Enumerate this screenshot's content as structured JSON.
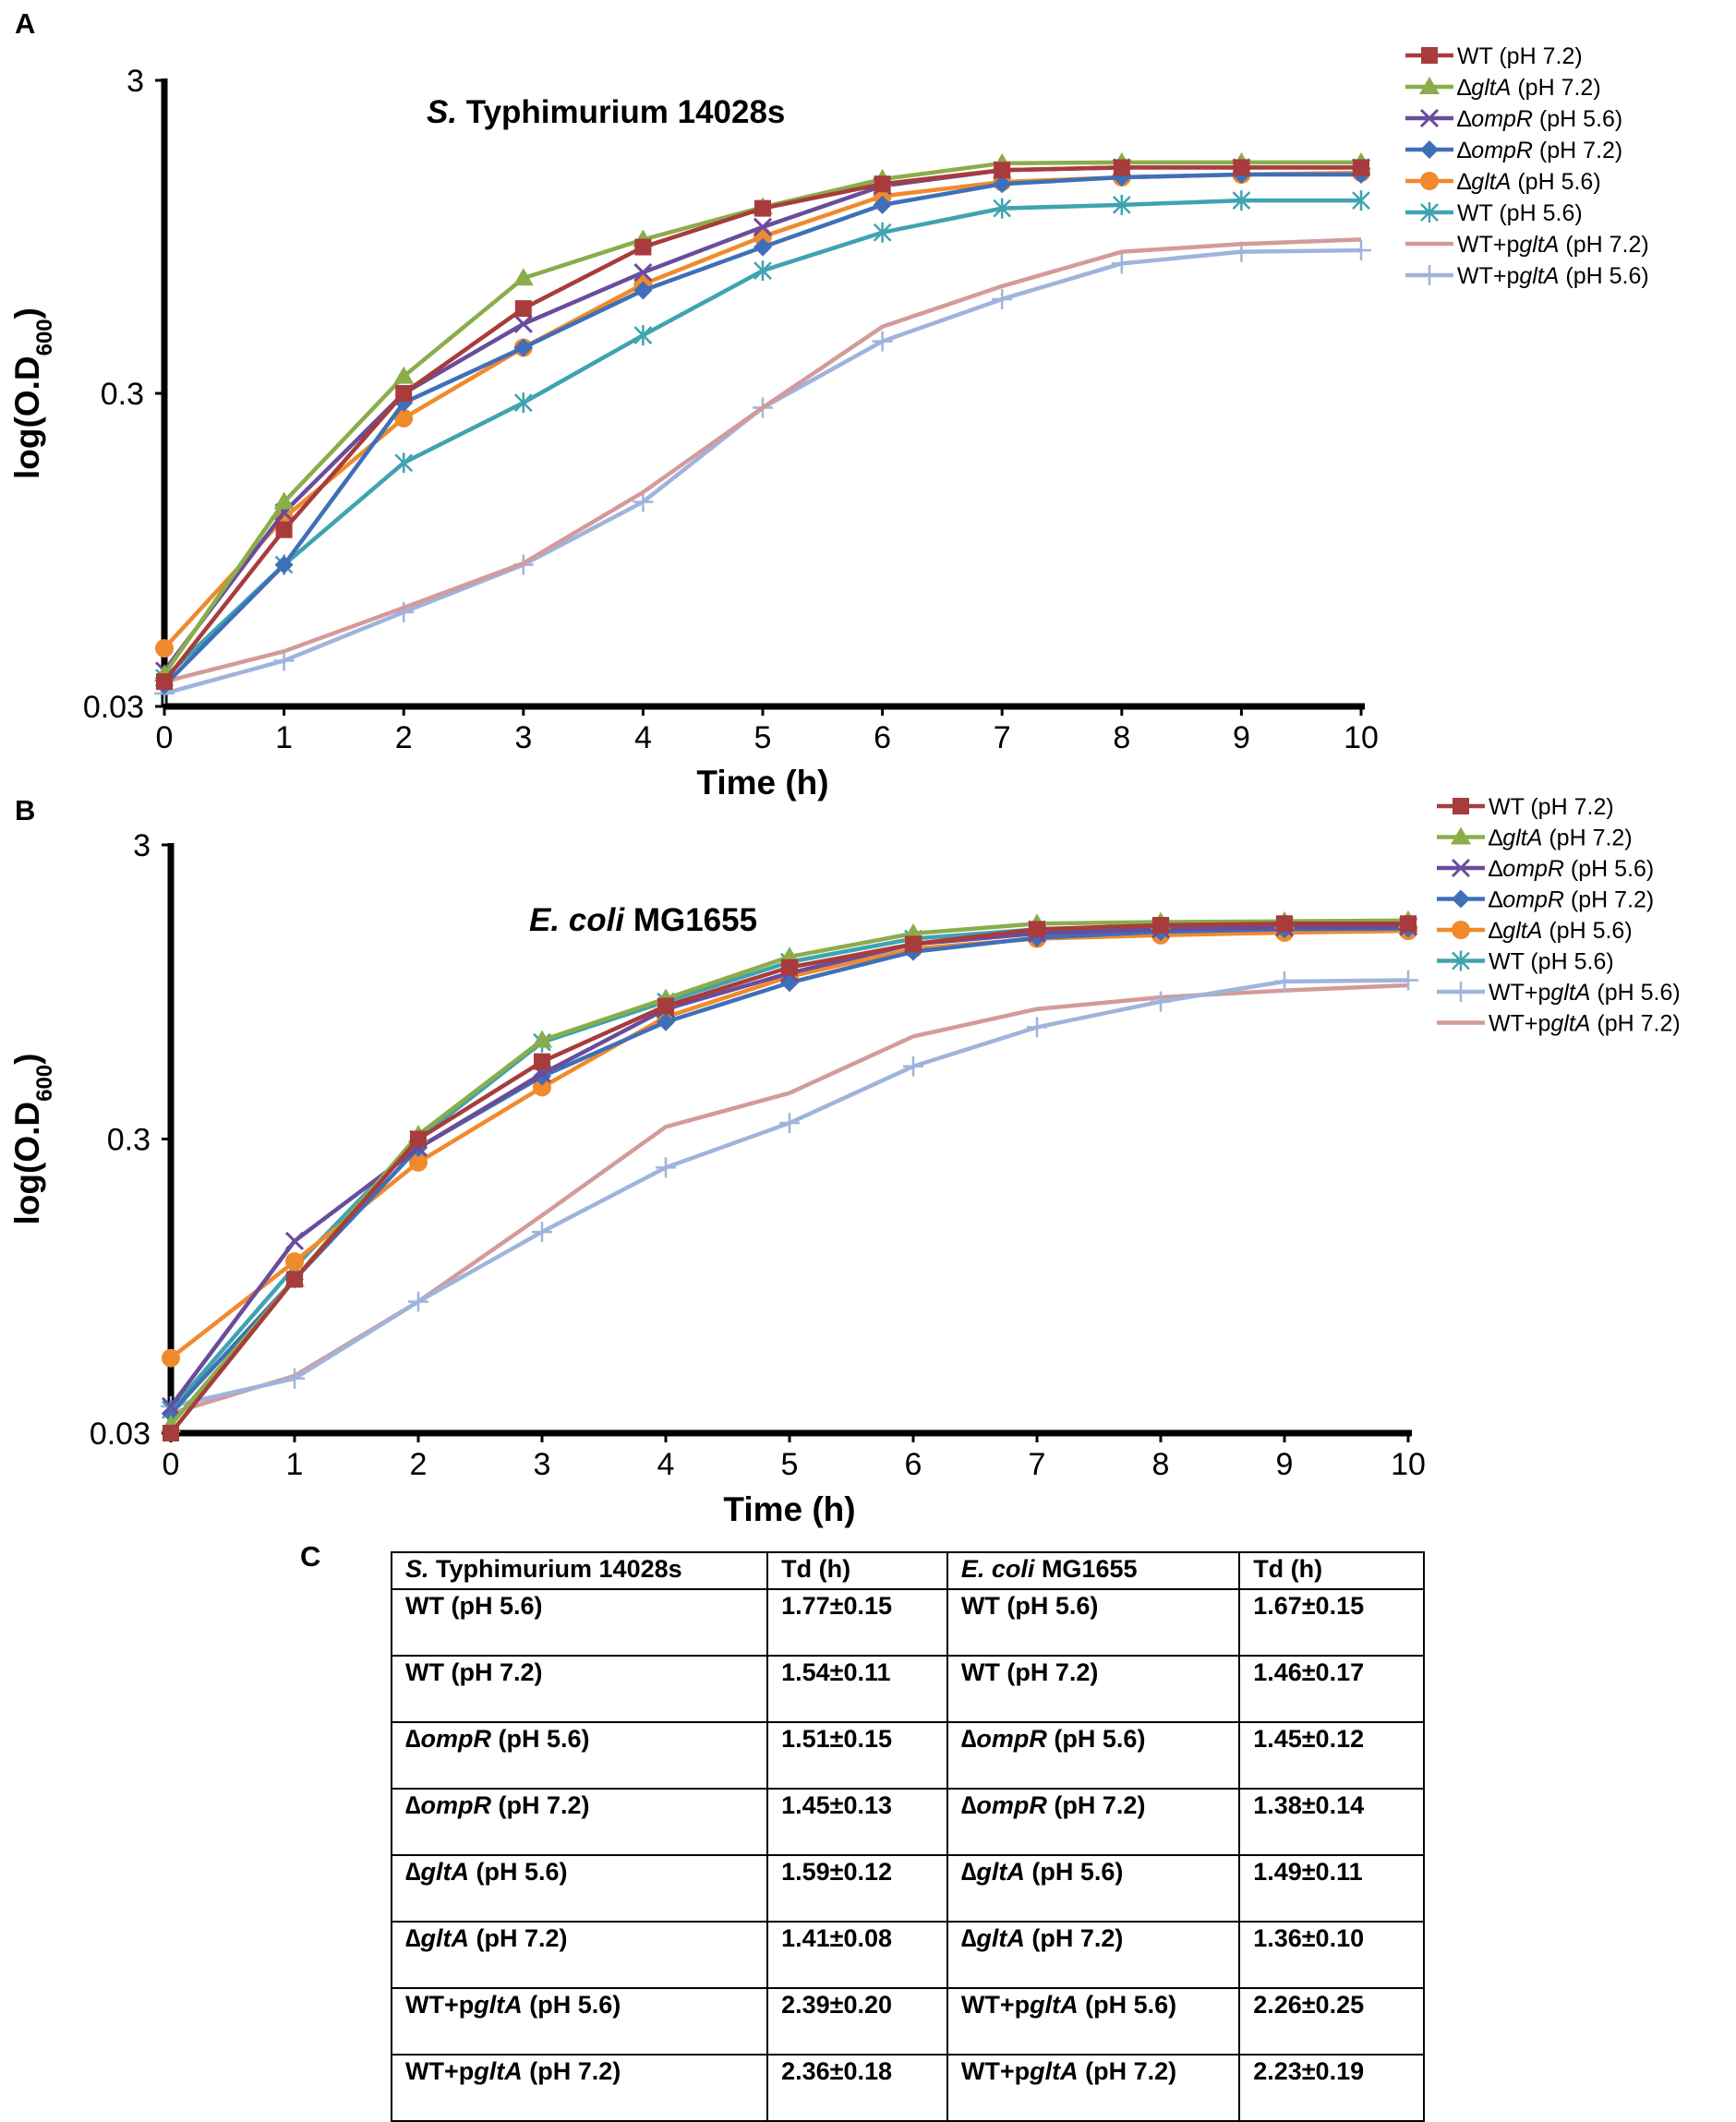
{
  "panels": [
    "A",
    "B",
    "C"
  ],
  "chart_data": [
    {
      "type": "line",
      "panel": "A",
      "title": "S. Typhimurium 14028s",
      "xlabel": "Time (h)",
      "ylabel": "log(O.D600)",
      "yscale": "log",
      "xlim": [
        0,
        10
      ],
      "ylim": [
        0.03,
        3
      ],
      "xticks": [
        "0",
        "1",
        "2",
        "3",
        "4",
        "5",
        "6",
        "7",
        "8",
        "9",
        "10"
      ],
      "yticks": [
        "0.03",
        "0.3",
        "3"
      ],
      "x": [
        0,
        1,
        2,
        3,
        4,
        5,
        6,
        7,
        8,
        9,
        10
      ],
      "legend_position": "top-right",
      "series": [
        {
          "name": "WT (pH 7.2)",
          "color": "#a83c3c",
          "marker": "square",
          "values": [
            0.036,
            0.11,
            0.3,
            0.56,
            0.88,
            1.17,
            1.4,
            1.55,
            1.58,
            1.58,
            1.58
          ]
        },
        {
          "name": "∆gltA (pH 7.2)",
          "color": "#8aad4a",
          "marker": "triangle",
          "values": [
            0.038,
            0.135,
            0.34,
            0.7,
            0.93,
            1.18,
            1.45,
            1.63,
            1.64,
            1.64,
            1.64
          ]
        },
        {
          "name": "∆ompR (pH 5.6)",
          "color": "#6a4c9c",
          "marker": "x",
          "values": [
            0.039,
            0.125,
            0.3,
            0.5,
            0.73,
            1.02,
            1.38,
            1.55,
            1.58,
            1.58,
            1.58
          ]
        },
        {
          "name": "∆ompR (pH 7.2)",
          "color": "#3f6fb8",
          "marker": "diamond",
          "values": [
            0.035,
            0.085,
            0.28,
            0.42,
            0.64,
            0.88,
            1.2,
            1.4,
            1.47,
            1.5,
            1.5
          ]
        },
        {
          "name": "∆gltA (pH 5.6)",
          "color": "#f08a2c",
          "marker": "circle",
          "values": [
            0.046,
            0.12,
            0.25,
            0.42,
            0.67,
            0.95,
            1.28,
            1.42,
            1.47,
            1.5,
            1.52
          ]
        },
        {
          "name": "WT (pH 5.6)",
          "color": "#3fa3b0",
          "marker": "asterisk",
          "values": [
            0.037,
            0.085,
            0.18,
            0.28,
            0.46,
            0.74,
            0.98,
            1.17,
            1.2,
            1.24,
            1.24
          ]
        },
        {
          "name": "WT+pgltA (pH 7.2)",
          "color": "#d49a9a",
          "marker": "none",
          "values": [
            0.036,
            0.045,
            0.062,
            0.086,
            0.145,
            0.27,
            0.49,
            0.66,
            0.85,
            0.9,
            0.93
          ]
        },
        {
          "name": "WT+pgltA (pH 5.6)",
          "color": "#9fb4dc",
          "marker": "plus",
          "values": [
            0.033,
            0.042,
            0.06,
            0.085,
            0.135,
            0.27,
            0.44,
            0.6,
            0.78,
            0.85,
            0.86
          ]
        }
      ]
    },
    {
      "type": "line",
      "panel": "B",
      "title": "E. coli MG1655",
      "xlabel": "Time (h)",
      "ylabel": "log(O.D600)",
      "yscale": "log",
      "xlim": [
        0,
        10
      ],
      "ylim": [
        0.03,
        3
      ],
      "xticks": [
        "0",
        "1",
        "2",
        "3",
        "4",
        "5",
        "6",
        "7",
        "8",
        "9",
        "10"
      ],
      "yticks": [
        "0.03",
        "0.3",
        "3"
      ],
      "x": [
        0,
        1,
        2,
        3,
        4,
        5,
        6,
        7,
        8,
        9,
        10
      ],
      "legend_position": "top-right",
      "series": [
        {
          "name": "WT (pH 7.2)",
          "color": "#a83c3c",
          "marker": "square",
          "values": [
            0.03,
            0.1,
            0.3,
            0.55,
            0.85,
            1.15,
            1.38,
            1.55,
            1.6,
            1.62,
            1.62
          ]
        },
        {
          "name": "∆gltA (pH 7.2)",
          "color": "#8aad4a",
          "marker": "triangle",
          "values": [
            0.032,
            0.1,
            0.31,
            0.65,
            0.9,
            1.25,
            1.5,
            1.62,
            1.64,
            1.65,
            1.66
          ]
        },
        {
          "name": "∆ompR (pH 5.6)",
          "color": "#6a4c9c",
          "marker": "x",
          "values": [
            0.037,
            0.135,
            0.28,
            0.5,
            0.83,
            1.1,
            1.38,
            1.5,
            1.55,
            1.57,
            1.58
          ]
        },
        {
          "name": "∆ompR (pH 7.2)",
          "color": "#3f6fb8",
          "marker": "diamond",
          "values": [
            0.035,
            0.1,
            0.28,
            0.49,
            0.75,
            1.02,
            1.3,
            1.45,
            1.52,
            1.55,
            1.56
          ]
        },
        {
          "name": "∆gltA (pH 5.6)",
          "color": "#f08a2c",
          "marker": "circle",
          "values": [
            0.054,
            0.115,
            0.25,
            0.45,
            0.78,
            1.07,
            1.33,
            1.44,
            1.48,
            1.51,
            1.53
          ]
        },
        {
          "name": "WT (pH 5.6)",
          "color": "#3fa3b0",
          "marker": "asterisk",
          "values": [
            0.036,
            0.11,
            0.3,
            0.64,
            0.88,
            1.2,
            1.44,
            1.55,
            1.58,
            1.6,
            1.6
          ]
        },
        {
          "name": "WT+pgltA (pH 5.6)",
          "color": "#9fb4dc",
          "marker": "plus",
          "values": [
            0.037,
            0.046,
            0.084,
            0.145,
            0.24,
            0.34,
            0.53,
            0.72,
            0.88,
            1.03,
            1.04
          ]
        },
        {
          "name": "WT+pgltA (pH 7.2)",
          "color": "#d49a9a",
          "marker": "none",
          "values": [
            0.035,
            0.047,
            0.084,
            0.165,
            0.33,
            0.43,
            0.67,
            0.83,
            0.91,
            0.96,
            1.0
          ]
        }
      ]
    },
    {
      "type": "table",
      "panel": "C",
      "columns": [
        "S. Typhimurium 14028s",
        "Td (h)",
        "E. coli MG1655",
        "Td (h)"
      ],
      "rows": [
        [
          "WT (pH 5.6)",
          "1.77±0.15",
          "WT (pH 5.6)",
          "1.67±0.15"
        ],
        [
          "WT (pH 7.2)",
          "1.54±0.11",
          "WT (pH 7.2)",
          "1.46±0.17"
        ],
        [
          "∆ompR (pH 5.6)",
          "1.51±0.15",
          "∆ompR (pH 5.6)",
          "1.45±0.12"
        ],
        [
          "∆ompR (pH 7.2)",
          "1.45±0.13",
          "∆ompR (pH 7.2)",
          "1.38±0.14"
        ],
        [
          "∆gltA (pH 5.6)",
          "1.59±0.12",
          "∆gltA (pH 5.6)",
          "1.49±0.11"
        ],
        [
          "∆gltA (pH 7.2)",
          "1.41±0.08",
          "∆gltA (pH 7.2)",
          "1.36±0.10"
        ],
        [
          "WT+pgltA (pH 5.6)",
          "2.39±0.20",
          "WT+pgltA (pH 5.6)",
          "2.26±0.25"
        ],
        [
          "WT+pgltA (pH 7.2)",
          "2.36±0.18",
          "WT+pgltA (pH 7.2)",
          "2.23±0.19"
        ]
      ]
    }
  ]
}
